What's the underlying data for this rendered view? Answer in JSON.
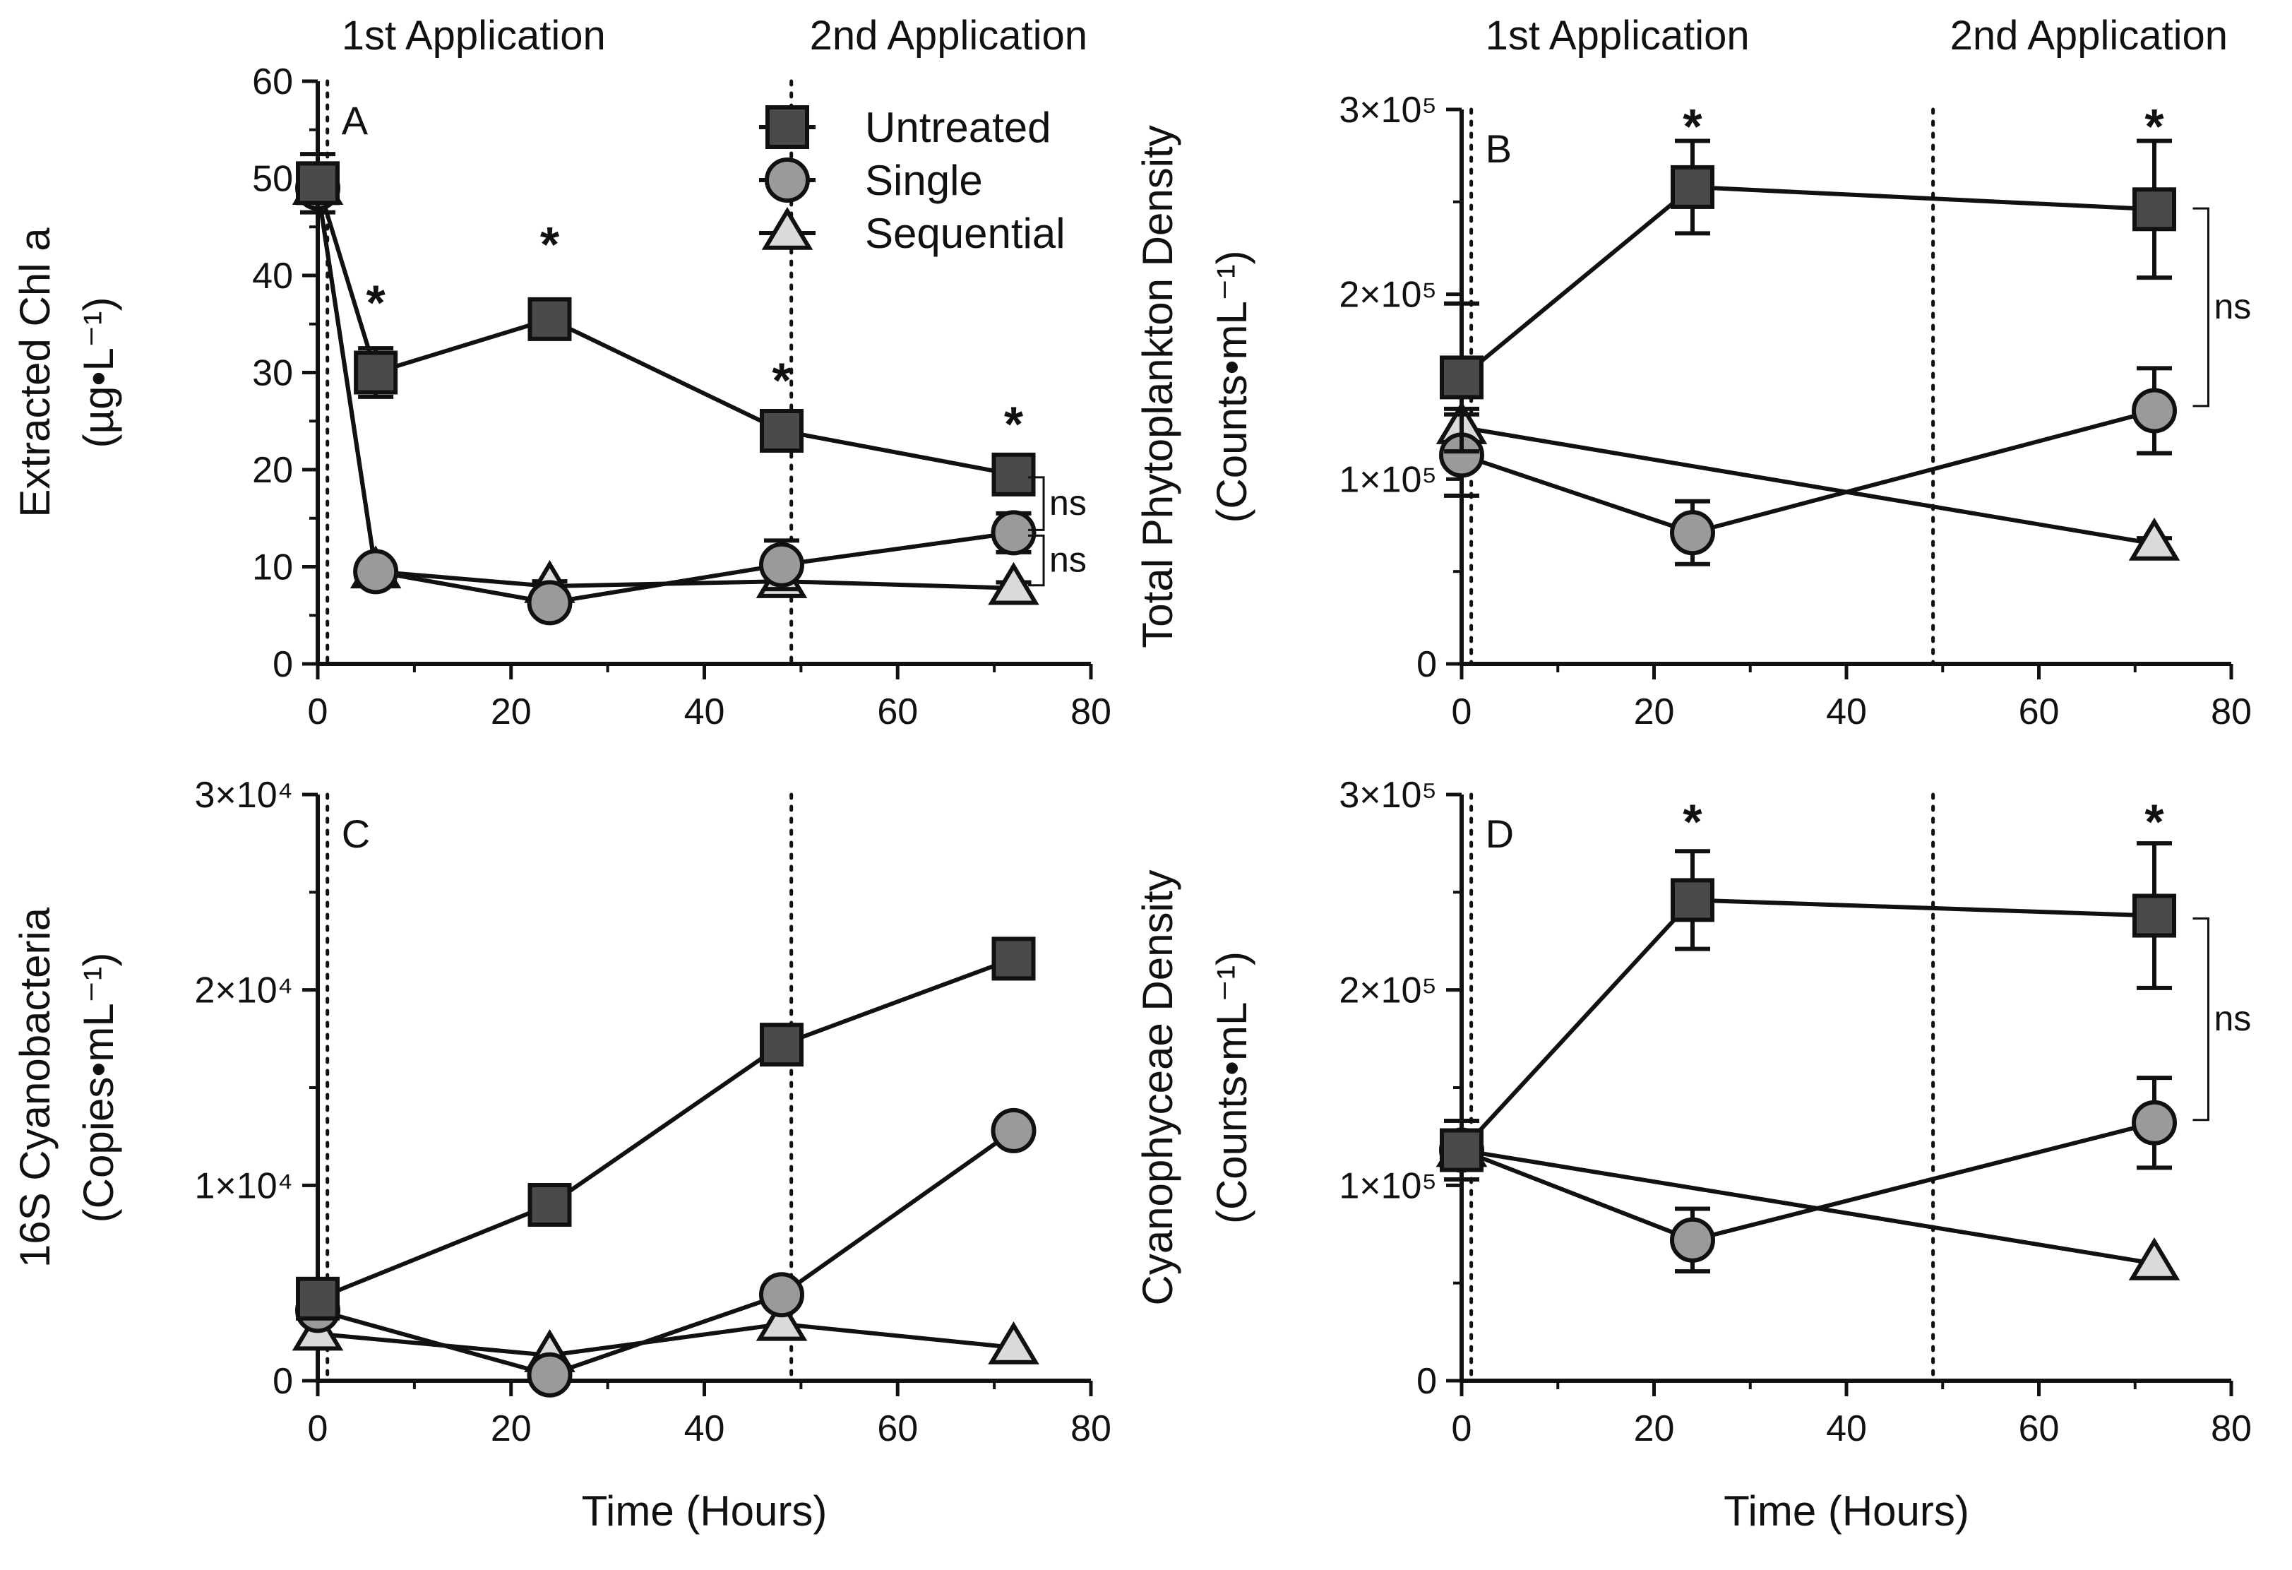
{
  "series_styles": {
    "Untreated": {
      "marker": "square",
      "fill": "#4a4a4a"
    },
    "Single": {
      "marker": "circle",
      "fill": "#9a9a9a"
    },
    "Sequential": {
      "marker": "triangle",
      "fill": "#dadada"
    }
  },
  "legend": [
    "Untreated",
    "Single",
    "Sequential"
  ],
  "chart_data": [
    {
      "id": "A",
      "type": "line",
      "panel_label": "A",
      "xlabel": "",
      "ylabel_lines": [
        "Extracted Chl a",
        "(µg•L⁻¹)"
      ],
      "xlim": [
        0,
        80
      ],
      "ylim": [
        0,
        60
      ],
      "xticks": [
        0,
        20,
        40,
        60,
        80
      ],
      "xtick_labels": [
        "0",
        "20",
        "40",
        "60",
        "80"
      ],
      "yticks": [
        0,
        10,
        20,
        30,
        40,
        50,
        60
      ],
      "ytick_labels": [
        "0",
        "10",
        "20",
        "30",
        "40",
        "50",
        "60"
      ],
      "application_lines": [
        1,
        49
      ],
      "application_labels": [
        "1st Application",
        "2nd Application"
      ],
      "series": [
        {
          "name": "Untreated",
          "x": [
            0,
            6,
            24,
            48,
            72
          ],
          "y": [
            49.5,
            30.0,
            35.5,
            24.0,
            19.5
          ],
          "err": [
            3.0,
            2.5,
            2.0,
            1.2,
            1.2
          ]
        },
        {
          "name": "Single",
          "x": [
            0,
            6,
            24,
            48,
            72
          ],
          "y": [
            49.0,
            9.5,
            6.3,
            10.2,
            13.5
          ],
          "err": [
            0,
            0.6,
            0.5,
            2.5,
            2.0
          ]
        },
        {
          "name": "Sequential",
          "x": [
            0,
            6,
            24,
            48,
            72
          ],
          "y": [
            49.0,
            9.5,
            8.0,
            8.5,
            7.8
          ],
          "err": [
            0,
            0.5,
            0.5,
            0.8,
            0.6
          ]
        }
      ],
      "significance": [
        {
          "x": 6,
          "y": 38,
          "label": "*"
        },
        {
          "x": 24,
          "y": 44,
          "label": "*"
        },
        {
          "x": 48,
          "y": 30,
          "label": "*"
        },
        {
          "x": 72,
          "y": 25.5,
          "label": "*"
        }
      ],
      "brackets": [
        {
          "x": 73.5,
          "y1": 19.5,
          "y2": 13.5,
          "label": "ns"
        },
        {
          "x": 73.5,
          "y1": 13.5,
          "y2": 7.8,
          "label": "ns"
        }
      ],
      "show_legend": true
    },
    {
      "id": "B",
      "type": "line",
      "panel_label": "B",
      "xlabel": "",
      "ylabel_lines": [
        "Total Phytoplankton Density",
        "(Counts•mL⁻¹)"
      ],
      "xlim": [
        0,
        80
      ],
      "ylim": [
        0,
        300000
      ],
      "xticks": [
        0,
        20,
        40,
        60,
        80
      ],
      "xtick_labels": [
        "0",
        "20",
        "40",
        "60",
        "80"
      ],
      "yticks": [
        0,
        100000,
        200000,
        300000
      ],
      "ytick_labels": [
        "0",
        "1×10⁵",
        "2×10⁵",
        "3×10⁵"
      ],
      "application_lines": [
        1,
        49
      ],
      "application_labels": [
        "1st  Application",
        "2nd Application"
      ],
      "series": [
        {
          "name": "Untreated",
          "x": [
            0,
            24,
            72
          ],
          "y": [
            155000,
            258000,
            246000
          ],
          "err": [
            40000,
            25000,
            37000
          ]
        },
        {
          "name": "Single",
          "x": [
            0,
            24,
            72
          ],
          "y": [
            113000,
            71000,
            137000
          ],
          "err": [
            22000,
            17000,
            23000
          ]
        },
        {
          "name": "Sequential",
          "x": [
            0,
            72
          ],
          "y": [
            128000,
            65000
          ],
          "err": [
            10000,
            3000
          ]
        }
      ],
      "significance": [
        {
          "x": 24,
          "y": 295000,
          "label": "*"
        },
        {
          "x": 72,
          "y": 295000,
          "label": "*"
        }
      ],
      "brackets": [
        {
          "x": 76,
          "y1": 248000,
          "y2": 138000,
          "label": "ns"
        }
      ],
      "show_legend": false
    },
    {
      "id": "C",
      "type": "line",
      "panel_label": "C",
      "xlabel": "Time (Hours)",
      "ylabel_lines": [
        "16S Cyanobacteria",
        "(Copies•mL⁻¹)"
      ],
      "xlim": [
        0,
        80
      ],
      "ylim": [
        0,
        30000
      ],
      "xticks": [
        0,
        20,
        40,
        60,
        80
      ],
      "xtick_labels": [
        "0",
        "20",
        "40",
        "60",
        "80"
      ],
      "yticks": [
        0,
        10000,
        20000,
        30000
      ],
      "ytick_labels": [
        "0",
        "1×10⁴",
        "2×10⁴",
        "3×10⁴"
      ],
      "application_lines": [
        1,
        49
      ],
      "application_labels": [],
      "series": [
        {
          "name": "Untreated",
          "x": [
            0,
            24,
            48,
            72
          ],
          "y": [
            4200,
            9000,
            17200,
            21600
          ],
          "err": [
            0,
            0,
            0,
            0
          ]
        },
        {
          "name": "Single",
          "x": [
            0,
            24,
            48,
            72
          ],
          "y": [
            3600,
            300,
            4400,
            12800
          ],
          "err": [
            0,
            0,
            0,
            0
          ]
        },
        {
          "name": "Sequential",
          "x": [
            0,
            24,
            48,
            72
          ],
          "y": [
            2400,
            1300,
            2900,
            1700
          ],
          "err": [
            0,
            0,
            0,
            0
          ]
        }
      ],
      "significance": [],
      "brackets": [],
      "show_legend": false
    },
    {
      "id": "D",
      "type": "line",
      "panel_label": "D",
      "xlabel": "Time (Hours)",
      "ylabel_lines": [
        "Cyanophyceae Density",
        "(Counts•mL⁻¹)"
      ],
      "xlim": [
        0,
        80
      ],
      "ylim": [
        0,
        300000
      ],
      "xticks": [
        0,
        20,
        40,
        60,
        80
      ],
      "xtick_labels": [
        "0",
        "20",
        "40",
        "60",
        "80"
      ],
      "yticks": [
        0,
        100000,
        200000,
        300000
      ],
      "ytick_labels": [
        "0",
        "1×10⁵",
        "2×10⁵",
        "3×10⁵"
      ],
      "application_lines": [
        1,
        49
      ],
      "application_labels": [],
      "series": [
        {
          "name": "Untreated",
          "x": [
            0,
            24,
            72
          ],
          "y": [
            118000,
            246000,
            238000
          ],
          "err": [
            15000,
            25000,
            37000
          ]
        },
        {
          "name": "Single",
          "x": [
            0,
            24,
            72
          ],
          "y": [
            118000,
            72000,
            132000
          ],
          "err": [
            0,
            16000,
            23000
          ]
        },
        {
          "name": "Sequential",
          "x": [
            0,
            72
          ],
          "y": [
            118000,
            60000
          ],
          "err": [
            0,
            0
          ]
        }
      ],
      "significance": [
        {
          "x": 24,
          "y": 290000,
          "label": "*"
        },
        {
          "x": 72,
          "y": 290000,
          "label": "*"
        }
      ],
      "brackets": [
        {
          "x": 76,
          "y1": 238000,
          "y2": 132000,
          "label": "ns"
        }
      ],
      "show_legend": false
    }
  ]
}
